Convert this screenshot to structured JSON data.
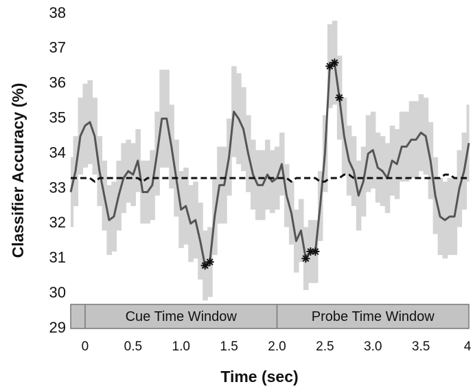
{
  "chart_data": {
    "type": "line",
    "xlabel": "Time (sec)",
    "ylabel": "Classifier Accuracy (%)",
    "xlim": [
      -0.15,
      4
    ],
    "ylim": [
      29,
      38
    ],
    "xticks": [
      0,
      0.5,
      {
        "value": 1,
        "label": "1.0"
      },
      1.5,
      {
        "value": 2,
        "label": "2.0"
      },
      2.5,
      {
        "value": 3,
        "label": "3.0"
      },
      3.5,
      4
    ],
    "yticks": [
      29,
      30,
      31,
      32,
      33,
      34,
      35,
      36,
      37,
      38
    ],
    "annotations": [
      {
        "text": "Cue Time Window",
        "x": [
          0,
          2
        ]
      },
      {
        "text": "Probe Time Window",
        "x": [
          2,
          4
        ]
      }
    ],
    "x": [
      -0.15,
      -0.1,
      -0.05,
      0,
      0.05,
      0.1,
      0.15,
      0.2,
      0.25,
      0.3,
      0.35,
      0.4,
      0.45,
      0.5,
      0.55,
      0.6,
      0.65,
      0.7,
      0.75,
      0.8,
      0.85,
      0.9,
      0.95,
      1,
      1.05,
      1.1,
      1.15,
      1.2,
      1.25,
      1.3,
      1.35,
      1.4,
      1.45,
      1.5,
      1.55,
      1.6,
      1.65,
      1.7,
      1.75,
      1.8,
      1.85,
      1.9,
      1.95,
      2,
      2.05,
      2.1,
      2.15,
      2.2,
      2.25,
      2.3,
      2.35,
      2.4,
      2.45,
      2.5,
      2.55,
      2.6,
      2.65,
      2.7,
      2.75,
      2.8,
      2.85,
      2.9,
      2.95,
      3,
      3.05,
      3.1,
      3.15,
      3.2,
      3.25,
      3.3,
      3.35,
      3.4,
      3.45,
      3.5,
      3.55,
      3.6,
      3.65,
      3.7,
      3.75,
      3.8,
      3.85,
      3.9,
      3.95,
      4
    ],
    "series": [
      {
        "color": "#555555",
        "band_color": "#d4d4d4",
        "values": [
          32.9,
          33.5,
          34.5,
          34.8,
          34.9,
          34.5,
          33.5,
          32.8,
          32.1,
          32.2,
          32.8,
          33.3,
          33.5,
          33.4,
          33.8,
          32.9,
          32.9,
          33.1,
          34.0,
          35.0,
          35.0,
          34.2,
          33.3,
          32.4,
          32.5,
          32.0,
          32.1,
          31.5,
          30.8,
          30.9,
          32.2,
          33.1,
          33.1,
          33.9,
          35.2,
          35.0,
          34.7,
          34.0,
          33.4,
          33.1,
          33.1,
          33.4,
          33.2,
          33.3,
          33.7,
          32.8,
          32.3,
          31.5,
          31.8,
          31.0,
          31.2,
          31.2,
          32.5,
          34.0,
          36.5,
          36.6,
          35.6,
          34.5,
          33.8,
          33.5,
          32.8,
          33.2,
          34.0,
          34.1,
          33.6,
          33.5,
          33.3,
          33.8,
          33.7,
          34.2,
          34.2,
          34.4,
          34.4,
          34.6,
          34.5,
          33.8,
          32.8,
          32.2,
          32.1,
          32.2,
          32.2,
          33.0,
          33.5,
          34.3
        ],
        "error": [
          1.0,
          1.0,
          1.1,
          1.2,
          1.2,
          1.1,
          1.0,
          1.0,
          1.0,
          1.0,
          1.0,
          1.0,
          0.9,
          0.9,
          0.9,
          0.9,
          0.9,
          1.0,
          1.2,
          1.4,
          1.4,
          1.2,
          1.1,
          1.1,
          1.1,
          1.1,
          1.1,
          1.1,
          1.0,
          1.0,
          1.1,
          1.1,
          1.1,
          1.1,
          1.3,
          1.3,
          1.2,
          1.1,
          1.0,
          1.0,
          1.0,
          1.0,
          0.9,
          0.9,
          0.9,
          0.9,
          0.9,
          0.9,
          0.9,
          0.9,
          0.9,
          0.9,
          1.0,
          1.1,
          1.2,
          1.2,
          1.2,
          1.1,
          1.0,
          1.0,
          1.0,
          1.0,
          1.1,
          1.1,
          1.0,
          1.0,
          1.0,
          1.0,
          1.0,
          1.0,
          1.0,
          1.1,
          1.1,
          1.1,
          1.1,
          1.1,
          1.1,
          1.1,
          1.1,
          1.1,
          1.1,
          1.1,
          1.1,
          1.1
        ]
      },
      {
        "color": "#111111",
        "dashed": true,
        "values": [
          33.3,
          33.3,
          33.3,
          33.3,
          33.3,
          33.2,
          33.3,
          33.3,
          33.3,
          33.3,
          33.3,
          33.3,
          33.3,
          33.3,
          33.3,
          33.2,
          33.3,
          33.3,
          33.3,
          33.3,
          33.3,
          33.3,
          33.3,
          33.3,
          33.3,
          33.3,
          33.3,
          33.3,
          33.3,
          33.3,
          33.3,
          33.3,
          33.3,
          33.3,
          33.3,
          33.3,
          33.3,
          33.3,
          33.3,
          33.3,
          33.3,
          33.3,
          33.3,
          33.3,
          33.3,
          33.3,
          33.2,
          33.3,
          33.3,
          33.3,
          33.3,
          33.3,
          33.2,
          33.2,
          33.3,
          33.3,
          33.3,
          33.4,
          33.4,
          33.3,
          33.3,
          33.3,
          33.3,
          33.3,
          33.3,
          33.3,
          33.3,
          33.3,
          33.3,
          33.3,
          33.3,
          33.3,
          33.3,
          33.3,
          33.3,
          33.3,
          33.3,
          33.3,
          33.4,
          33.4,
          33.3,
          33.3,
          33.3,
          33.3
        ]
      },
      {
        "color": "#111111",
        "marker": "asterisk",
        "x": [
          1.25,
          1.3,
          2.3,
          2.35,
          2.4,
          2.55,
          2.6,
          2.65
        ],
        "values": [
          30.8,
          30.9,
          31.0,
          31.2,
          31.2,
          36.5,
          36.6,
          35.6
        ]
      }
    ]
  }
}
